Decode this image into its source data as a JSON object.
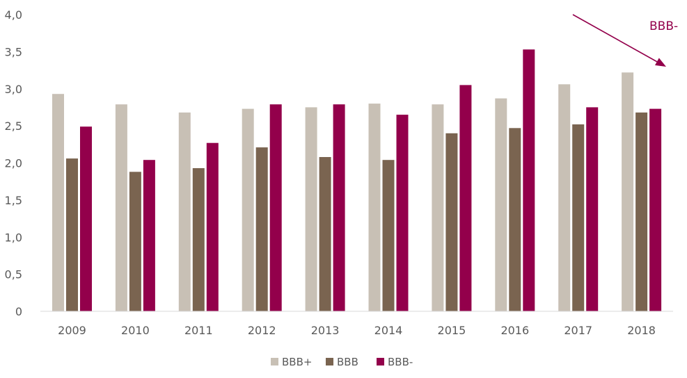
{
  "chart_data": {
    "type": "bar",
    "title": "",
    "xlabel": "",
    "ylabel": "",
    "categories": [
      "2009",
      "2010",
      "2011",
      "2012",
      "2013",
      "2014",
      "2015",
      "2016",
      "2017",
      "2018"
    ],
    "series": [
      {
        "name": "BBB+",
        "color": "#c8c0b5",
        "values": [
          2.93,
          2.79,
          2.68,
          2.73,
          2.75,
          2.8,
          2.79,
          2.87,
          3.06,
          3.22
        ]
      },
      {
        "name": "BBB",
        "color": "#7a6450",
        "values": [
          2.06,
          1.88,
          1.93,
          2.21,
          2.08,
          2.04,
          2.4,
          2.47,
          2.52,
          2.68
        ]
      },
      {
        "name": "BBB-",
        "color": "#93004b",
        "values": [
          2.49,
          2.04,
          2.27,
          2.79,
          2.79,
          2.65,
          3.05,
          3.53,
          2.75,
          2.73
        ]
      }
    ],
    "ylim": [
      0,
      4
    ],
    "yticks": [
      0,
      0.5,
      1,
      1.5,
      2,
      2.5,
      3,
      3.5,
      4
    ],
    "ytick_labels": [
      "0",
      "0,5",
      "1,0",
      "1,5",
      "2,0",
      "2,5",
      "3,0",
      "3,5",
      "4,0"
    ],
    "grid": false,
    "legend_position": "bottom",
    "annotation": {
      "text": "BBB-",
      "color": "#93004b",
      "arrow": true
    }
  }
}
